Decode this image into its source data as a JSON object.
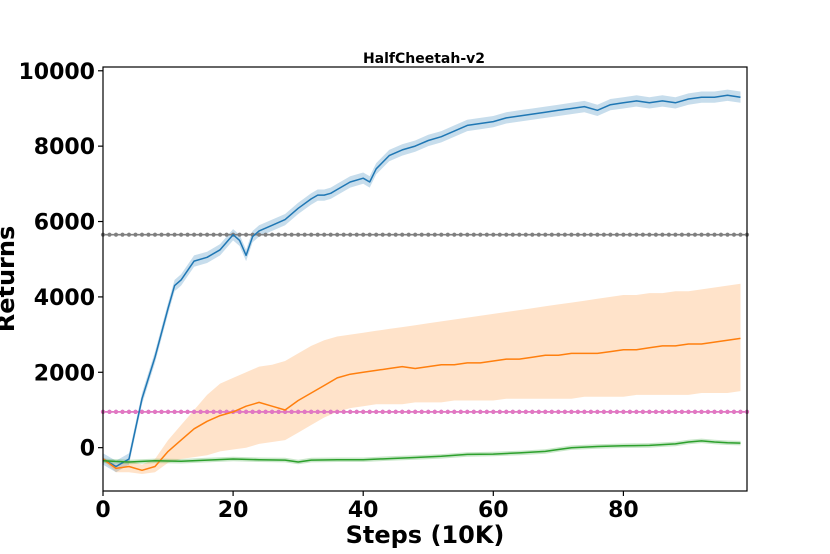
{
  "chart_data": {
    "type": "line",
    "title": "HalfCheetah-v2",
    "xlabel": "Steps (10K)",
    "ylabel": "Returns",
    "xlim": [
      0,
      99
    ],
    "ylim": [
      -1150,
      10100
    ],
    "xticks": [
      0,
      20,
      40,
      60,
      80
    ],
    "yticks": [
      0,
      2000,
      4000,
      6000,
      8000,
      10000
    ],
    "grid": false,
    "legend": "none",
    "series": [
      {
        "color": "#1f77b4",
        "x": [
          0,
          2,
          4,
          6,
          8,
          10,
          11,
          12,
          14,
          16,
          18,
          20,
          21,
          22,
          23,
          24,
          26,
          28,
          30,
          32,
          33,
          34,
          35,
          36,
          38,
          40,
          41,
          42,
          44,
          46,
          48,
          50,
          52,
          54,
          56,
          58,
          60,
          62,
          64,
          66,
          68,
          70,
          72,
          74,
          76,
          78,
          80,
          82,
          84,
          86,
          88,
          90,
          92,
          94,
          96,
          98
        ],
        "y": [
          -300,
          -500,
          -300,
          1300,
          2400,
          3700,
          4300,
          4450,
          4950,
          5050,
          5250,
          5650,
          5500,
          5100,
          5600,
          5750,
          5900,
          6050,
          6350,
          6600,
          6700,
          6700,
          6750,
          6850,
          7050,
          7150,
          7050,
          7400,
          7750,
          7900,
          8000,
          8150,
          8250,
          8400,
          8550,
          8600,
          8650,
          8750,
          8800,
          8850,
          8900,
          8950,
          9000,
          9050,
          8950,
          9100,
          9150,
          9200,
          9150,
          9200,
          9150,
          9250,
          9300,
          9300,
          9350,
          9300
        ],
        "band": 150
      },
      {
        "color": "#ff7f0e",
        "x": [
          0,
          2,
          4,
          6,
          8,
          10,
          12,
          14,
          16,
          18,
          20,
          22,
          24,
          26,
          28,
          30,
          32,
          34,
          36,
          38,
          40,
          42,
          44,
          46,
          48,
          50,
          52,
          54,
          56,
          58,
          60,
          62,
          64,
          66,
          68,
          70,
          72,
          74,
          76,
          78,
          80,
          82,
          84,
          86,
          88,
          90,
          92,
          94,
          96,
          98
        ],
        "y": [
          -300,
          -550,
          -500,
          -600,
          -500,
          -100,
          200,
          500,
          700,
          850,
          950,
          1100,
          1200,
          1100,
          1000,
          1250,
          1450,
          1650,
          1850,
          1950,
          2000,
          2050,
          2100,
          2150,
          2100,
          2150,
          2200,
          2200,
          2250,
          2250,
          2300,
          2350,
          2350,
          2400,
          2450,
          2450,
          2500,
          2500,
          2500,
          2550,
          2600,
          2600,
          2650,
          2700,
          2700,
          2750,
          2750,
          2800,
          2850,
          2900
        ],
        "band_lo": [
          -350,
          -650,
          -650,
          -700,
          -650,
          -400,
          -300,
          -250,
          -200,
          -100,
          -50,
          0,
          100,
          150,
          200,
          400,
          600,
          800,
          950,
          1050,
          1100,
          1150,
          1150,
          1150,
          1200,
          1200,
          1200,
          1250,
          1250,
          1250,
          1250,
          1300,
          1300,
          1300,
          1300,
          1300,
          1300,
          1350,
          1350,
          1350,
          1350,
          1400,
          1400,
          1400,
          1400,
          1400,
          1450,
          1450,
          1450,
          1500
        ],
        "band_hi": [
          -250,
          -450,
          -350,
          -450,
          -300,
          200,
          600,
          1000,
          1400,
          1700,
          1850,
          2000,
          2150,
          2200,
          2300,
          2500,
          2700,
          2850,
          2950,
          3000,
          3050,
          3100,
          3150,
          3200,
          3250,
          3300,
          3350,
          3400,
          3450,
          3500,
          3550,
          3600,
          3650,
          3700,
          3750,
          3800,
          3850,
          3900,
          3950,
          4000,
          4050,
          4050,
          4100,
          4100,
          4150,
          4150,
          4200,
          4250,
          4300,
          4350
        ]
      },
      {
        "color": "#2ca02c",
        "x": [
          0,
          4,
          8,
          12,
          16,
          20,
          24,
          28,
          30,
          32,
          36,
          40,
          44,
          48,
          52,
          56,
          60,
          64,
          68,
          70,
          72,
          76,
          80,
          84,
          86,
          88,
          90,
          92,
          94,
          96,
          98
        ],
        "y": [
          -350,
          -380,
          -350,
          -360,
          -330,
          -300,
          -320,
          -330,
          -380,
          -330,
          -320,
          -320,
          -290,
          -260,
          -230,
          -180,
          -170,
          -140,
          -100,
          -50,
          0,
          30,
          50,
          60,
          80,
          100,
          150,
          180,
          150,
          130,
          120
        ],
        "band": 60
      }
    ],
    "reference_lines": [
      {
        "value": 5650,
        "color": "#7f7f7f"
      },
      {
        "value": 950,
        "color": "#9467bd"
      },
      {
        "value": 950,
        "color": "#e377c2"
      }
    ]
  }
}
